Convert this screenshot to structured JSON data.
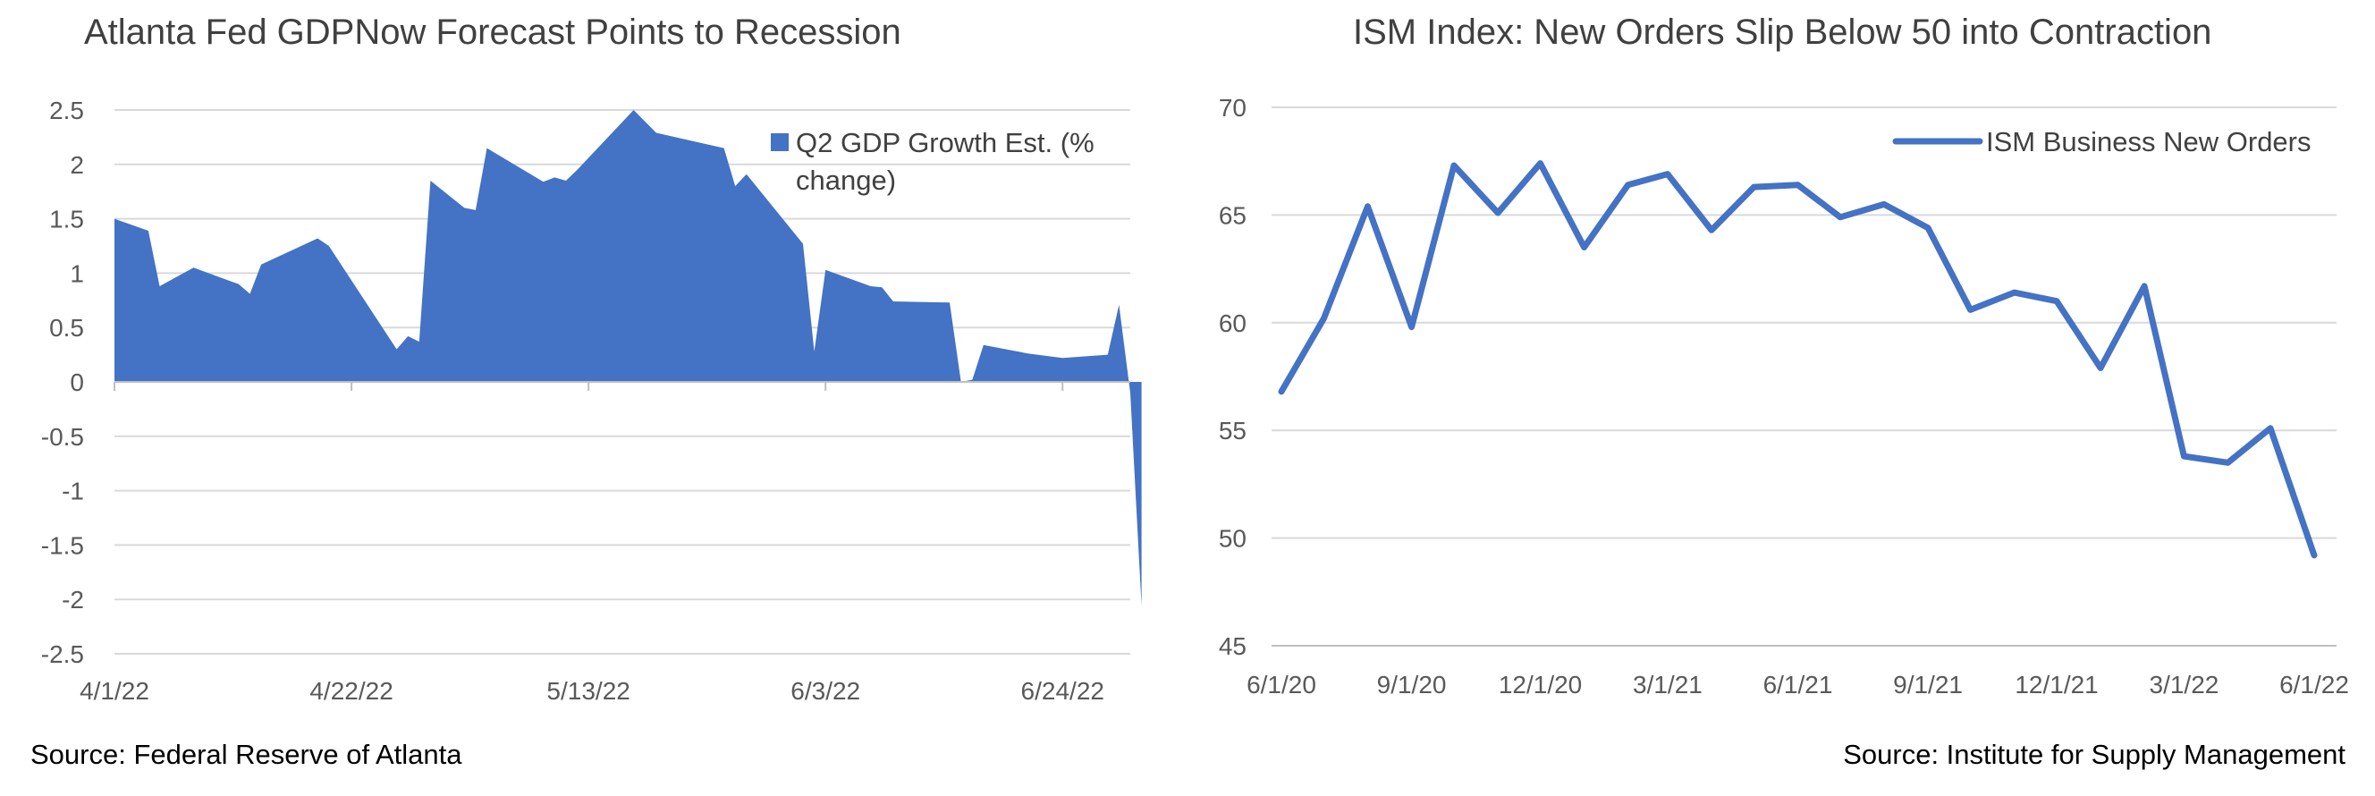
{
  "chart_data": [
    {
      "type": "area",
      "title": "Atlanta Fed GDPNow Forecast Points to Recession",
      "xlabel": "",
      "ylabel": "",
      "ylim": [
        -2.5,
        2.5
      ],
      "yticks": [
        "2.5",
        "2",
        "1.5",
        "1",
        "0.5",
        "0",
        "-0.5",
        "-1",
        "-1.5",
        "-2",
        "-2.5"
      ],
      "xticks": [
        "4/1/22",
        "4/22/22",
        "5/13/22",
        "6/3/22",
        "6/24/22"
      ],
      "x_start": "2022-04-01",
      "x_end": "2022-06-30",
      "grid": true,
      "legend_position": "top-right",
      "color": "#4472C4",
      "series": [
        {
          "name": "Q2 GDP Growth Est. (% change)",
          "points": [
            [
              "2022-04-01",
              1.5
            ],
            [
              "2022-04-04",
              1.39
            ],
            [
              "2022-04-05",
              0.88
            ],
            [
              "2022-04-08",
              1.05
            ],
            [
              "2022-04-12",
              0.9
            ],
            [
              "2022-04-13",
              0.81
            ],
            [
              "2022-04-14",
              1.08
            ],
            [
              "2022-04-19",
              1.32
            ],
            [
              "2022-04-20",
              1.25
            ],
            [
              "2022-04-26",
              0.3
            ],
            [
              "2022-04-27",
              0.42
            ],
            [
              "2022-04-28",
              0.37
            ],
            [
              "2022-04-29",
              1.85
            ],
            [
              "2022-05-02",
              1.6
            ],
            [
              "2022-05-03",
              1.58
            ],
            [
              "2022-05-04",
              2.15
            ],
            [
              "2022-05-09",
              1.84
            ],
            [
              "2022-05-10",
              1.88
            ],
            [
              "2022-05-11",
              1.85
            ],
            [
              "2022-05-12",
              1.95
            ],
            [
              "2022-05-17",
              2.5
            ],
            [
              "2022-05-19",
              2.29
            ],
            [
              "2022-05-25",
              2.15
            ],
            [
              "2022-05-26",
              1.8
            ],
            [
              "2022-05-27",
              1.91
            ],
            [
              "2022-06-01",
              1.27
            ],
            [
              "2022-06-02",
              0.28
            ],
            [
              "2022-06-03",
              1.03
            ],
            [
              "2022-06-07",
              0.88
            ],
            [
              "2022-06-08",
              0.87
            ],
            [
              "2022-06-09",
              0.74
            ],
            [
              "2022-06-14",
              0.73
            ],
            [
              "2022-06-15",
              0.0
            ],
            [
              "2022-06-16",
              0.02
            ],
            [
              "2022-06-17",
              0.34
            ],
            [
              "2022-06-21",
              0.26
            ],
            [
              "2022-06-24",
              0.22
            ],
            [
              "2022-06-28",
              0.25
            ],
            [
              "2022-06-29",
              0.71
            ],
            [
              "2022-06-30",
              -0.1
            ],
            [
              "2022-07-01",
              -2.06
            ]
          ]
        }
      ]
    },
    {
      "type": "line",
      "title": "ISM Index: New Orders Slip Below 50 into Contraction",
      "xlabel": "",
      "ylabel": "",
      "ylim": [
        45,
        70
      ],
      "yticks": [
        "70",
        "65",
        "60",
        "55",
        "50",
        "45"
      ],
      "xticks": [
        "6/1/20",
        "9/1/20",
        "12/1/20",
        "3/1/21",
        "6/1/21",
        "9/1/21",
        "12/1/21",
        "3/1/22",
        "6/1/22"
      ],
      "grid": true,
      "legend_position": "top-right",
      "color": "#4472C4",
      "categories": [
        "2020-06",
        "2020-07",
        "2020-08",
        "2020-09",
        "2020-10",
        "2020-11",
        "2020-12",
        "2021-01",
        "2021-02",
        "2021-03",
        "2021-04",
        "2021-05",
        "2021-06",
        "2021-07",
        "2021-08",
        "2021-09",
        "2021-10",
        "2021-11",
        "2021-12",
        "2022-01",
        "2022-02",
        "2022-03",
        "2022-04",
        "2022-05",
        "2022-06"
      ],
      "series": [
        {
          "name": "ISM Business New Orders",
          "values": [
            56.8,
            60.2,
            65.4,
            59.8,
            67.3,
            65.1,
            67.4,
            63.5,
            66.4,
            66.9,
            64.3,
            66.3,
            66.4,
            64.9,
            65.5,
            64.4,
            60.6,
            61.4,
            61.0,
            57.9,
            61.7,
            53.8,
            53.5,
            55.1,
            49.2
          ]
        }
      ]
    }
  ],
  "sources": {
    "left": "Source: Federal Reserve of Atlanta",
    "right": "Source: Institute for Supply Management"
  }
}
